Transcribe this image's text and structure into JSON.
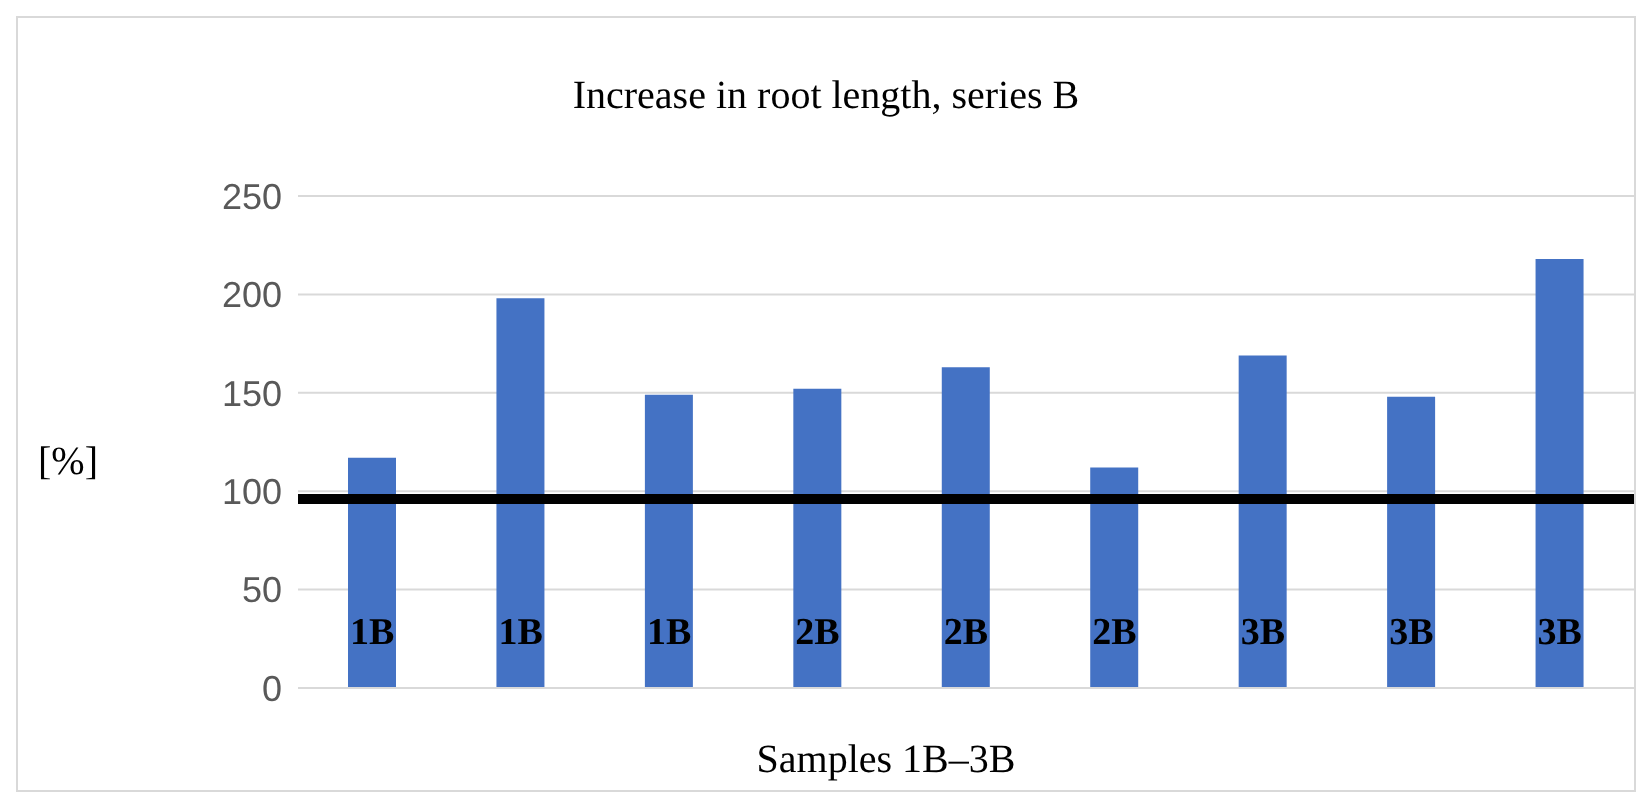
{
  "chart_data": {
    "type": "bar",
    "title": "Increase in root length, series B",
    "xlabel": "Samples 1B–3B",
    "ylabel": "[%]",
    "categories": [
      "1B",
      "1B",
      "1B",
      "2B",
      "2B",
      "2B",
      "3B",
      "3B",
      "3B"
    ],
    "values": [
      117,
      198,
      149,
      152,
      163,
      112,
      169,
      148,
      218
    ],
    "color": "#4472c4",
    "ylim": [
      0,
      250
    ],
    "yticks": [
      0,
      50,
      100,
      150,
      200,
      250
    ],
    "grid": "y",
    "ref_lines": [
      {
        "axis": "y",
        "value": 96,
        "color": "#000000"
      }
    ]
  }
}
